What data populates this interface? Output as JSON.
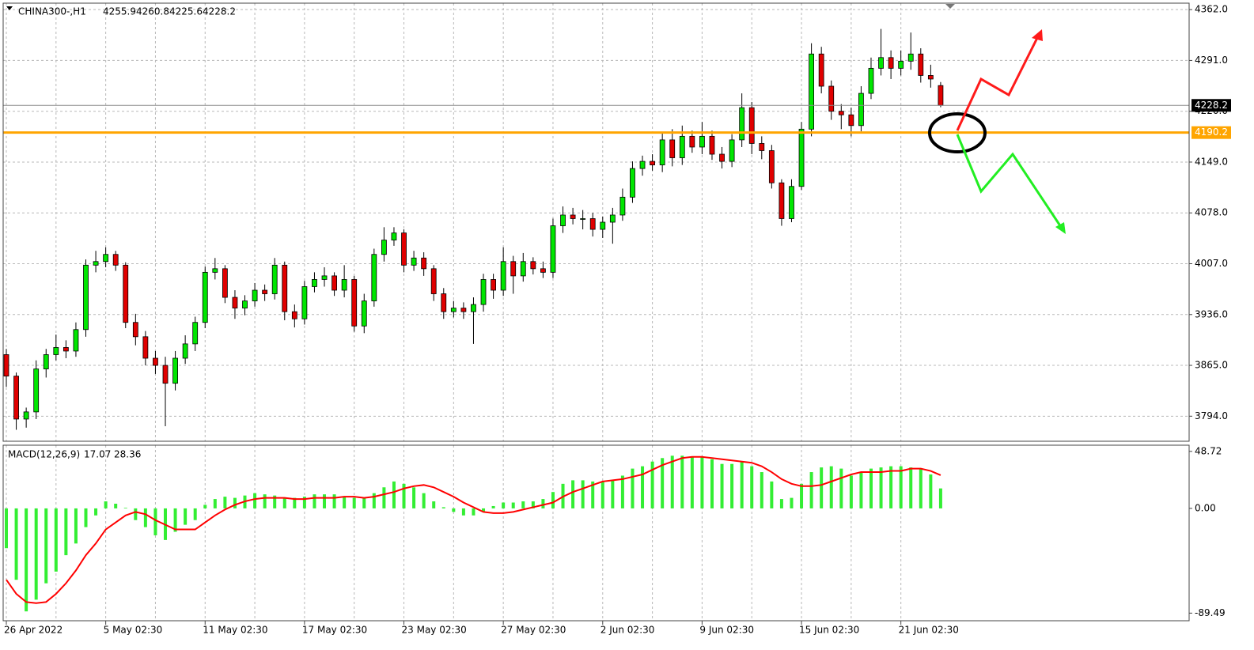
{
  "chart_data": [
    {
      "type": "candlestick",
      "title": "CHINA300-,H1",
      "xlim": [
        0,
        119
      ],
      "xticks": [
        {
          "value": 0,
          "label": "26 Apr 2022"
        },
        {
          "value": 10,
          "label": "5 May 02:30"
        },
        {
          "value": 20,
          "label": "11 May 02:30"
        },
        {
          "value": 30,
          "label": "17 May 02:30"
        },
        {
          "value": 40,
          "label": "23 May 02:30"
        },
        {
          "value": 50,
          "label": "27 May 02:30"
        },
        {
          "value": 60,
          "label": "2 Jun 02:30"
        },
        {
          "value": 70,
          "label": "9 Jun 02:30"
        },
        {
          "value": 80,
          "label": "15 Jun 02:30"
        },
        {
          "value": 90,
          "label": "21 Jun 02:30"
        }
      ],
      "ylim": [
        3759,
        4371
      ],
      "yticks": [
        {
          "value": 3794,
          "label": "3794.0"
        },
        {
          "value": 3865,
          "label": "3865.0"
        },
        {
          "value": 3936,
          "label": "3936.0"
        },
        {
          "value": 4007,
          "label": "4007.0"
        },
        {
          "value": 4078,
          "label": "4078.0"
        },
        {
          "value": 4149,
          "label": "4149.0"
        },
        {
          "value": 4220,
          "label": "4220.0"
        },
        {
          "value": 4291,
          "label": "4291.0"
        },
        {
          "value": 4362,
          "label": "4362.0"
        }
      ],
      "grid": true,
      "up_color": "#00e600",
      "down_color": "#e00000",
      "open": [
        3880,
        3850,
        3790,
        3800,
        3860,
        3880,
        3890,
        3885,
        3915,
        4005,
        4010,
        4020,
        4005,
        3925,
        3905,
        3875,
        3865,
        3840,
        3875,
        3895,
        3925,
        3995,
        4000,
        3960,
        3945,
        3955,
        3970,
        3965,
        4005,
        3940,
        3930,
        3975,
        3985,
        3990,
        3970,
        3985,
        3920,
        3955,
        4020,
        4040,
        4050,
        4005,
        4015,
        4000,
        3965,
        3940,
        3945,
        3940,
        3950,
        3985,
        3970,
        4010,
        3990,
        4010,
        4000,
        3995,
        4060,
        4075,
        4070,
        4070,
        4055,
        4065,
        4075,
        4100,
        4140,
        4150,
        4145,
        4180,
        4155,
        4185,
        4170,
        4185,
        4160,
        4150,
        4180,
        4225,
        4175,
        4165,
        4120,
        4070,
        4115,
        4195,
        4300,
        4255,
        4220,
        4215,
        4200,
        4245,
        4280,
        4295,
        4280,
        4290,
        4300,
        4270,
        4255.9
      ],
      "high": [
        3888,
        3855,
        3806,
        3872,
        3888,
        3908,
        3900,
        3925,
        4013,
        4025,
        4030,
        4025,
        4009,
        3937,
        3913,
        3885,
        3877,
        3885,
        3907,
        3933,
        4003,
        4015,
        4005,
        3970,
        3963,
        3980,
        3978,
        4015,
        4010,
        3950,
        3983,
        3995,
        4002,
        3995,
        4005,
        3990,
        3965,
        4028,
        4058,
        4058,
        4055,
        4025,
        4023,
        4005,
        3973,
        3955,
        3953,
        3960,
        3993,
        3993,
        4030,
        4018,
        4022,
        4016,
        4010,
        4070,
        4087,
        4085,
        4082,
        4078,
        4073,
        4085,
        4112,
        4150,
        4158,
        4160,
        4190,
        4195,
        4200,
        4193,
        4205,
        4193,
        4170,
        4188,
        4245,
        4233,
        4185,
        4173,
        4125,
        4125,
        4205,
        4315,
        4310,
        4263,
        4230,
        4225,
        4255,
        4295,
        4335,
        4305,
        4305,
        4330,
        4308,
        4285,
        4260.8
      ],
      "low": [
        3835,
        3775,
        3778,
        3790,
        3848,
        3872,
        3875,
        3877,
        3905,
        3995,
        4002,
        3997,
        3917,
        3893,
        3865,
        3853,
        3780,
        3830,
        3867,
        3885,
        3917,
        3985,
        3952,
        3930,
        3935,
        3947,
        3955,
        3957,
        3928,
        3918,
        3922,
        3967,
        3975,
        3962,
        3960,
        3912,
        3910,
        3947,
        4010,
        4032,
        3995,
        3997,
        3990,
        3955,
        3930,
        3932,
        3930,
        3895,
        3940,
        3958,
        3962,
        3965,
        3982,
        3992,
        3987,
        3987,
        4050,
        4062,
        4055,
        4045,
        4043,
        4035,
        4067,
        4092,
        4130,
        4137,
        4135,
        4143,
        4145,
        4162,
        4160,
        4152,
        4140,
        4142,
        4170,
        4160,
        4153,
        4112,
        4060,
        4065,
        4110,
        4185,
        4245,
        4208,
        4195,
        4185,
        4192,
        4237,
        4270,
        4265,
        4270,
        4278,
        4260,
        4253,
        4225.6
      ],
      "close": [
        3850,
        3790,
        3800,
        3860,
        3880,
        3890,
        3885,
        3915,
        4005,
        4010,
        4020,
        4005,
        3925,
        3905,
        3875,
        3865,
        3840,
        3875,
        3895,
        3925,
        3995,
        4000,
        3960,
        3945,
        3955,
        3970,
        3965,
        4005,
        3940,
        3930,
        3975,
        3985,
        3990,
        3970,
        3985,
        3920,
        3955,
        4020,
        4040,
        4050,
        4005,
        4015,
        4000,
        3965,
        3940,
        3945,
        3940,
        3950,
        3985,
        3970,
        4010,
        3990,
        4010,
        4000,
        3995,
        4060,
        4075,
        4070,
        4070,
        4055,
        4065,
        4075,
        4100,
        4140,
        4150,
        4145,
        4180,
        4155,
        4185,
        4170,
        4185,
        4160,
        4150,
        4180,
        4225,
        4175,
        4165,
        4120,
        4070,
        4115,
        4195,
        4300,
        4255,
        4220,
        4215,
        4200,
        4245,
        4280,
        4295,
        4280,
        4290,
        4300,
        4270,
        4265,
        4228.2
      ],
      "horizontal_line": 4190.2,
      "horizontal_line_color": "#ffa500"
    },
    {
      "type": "macd",
      "title": "MACD(12,26,9)",
      "ylim": [
        -96,
        54
      ],
      "yticks": [
        -89.49,
        {
          "value": 0,
          "label": "0.00"
        },
        48.72
      ],
      "histogram": {
        "color": "#33ee33",
        "values": [
          -34,
          -61,
          -88,
          -78,
          -64,
          -54,
          -40,
          -30,
          -16,
          -6,
          6,
          4,
          0.5,
          -10,
          -16,
          -23,
          -27,
          -20,
          -14,
          -10,
          3,
          8,
          10,
          9,
          11,
          13,
          12,
          11,
          9,
          9,
          10,
          12,
          12,
          12,
          10,
          9,
          9,
          13,
          18,
          23,
          21,
          18,
          13,
          6,
          1,
          -3,
          -6,
          -6,
          -3,
          2,
          5,
          5,
          6,
          6,
          8,
          14,
          21,
          24,
          24,
          23,
          23,
          24,
          28,
          34,
          36,
          40,
          43,
          45,
          45,
          44,
          44,
          42,
          38,
          38,
          40,
          36,
          31,
          23,
          8,
          9,
          21,
          31,
          35,
          36,
          34,
          28,
          31,
          34,
          35,
          36,
          36,
          35,
          34,
          29,
          17.07
        ]
      },
      "signal": {
        "color": "#ff0000",
        "values": [
          -61,
          -73,
          -80,
          -81,
          -80,
          -73,
          -64,
          -53,
          -40,
          -30,
          -18,
          -12,
          -6,
          -3,
          -5,
          -10,
          -14,
          -18,
          -18,
          -18,
          -12,
          -6,
          -1,
          3,
          6,
          8,
          9,
          9,
          9,
          8,
          8,
          9,
          9,
          9,
          10,
          10,
          9,
          10,
          12,
          14,
          17,
          19,
          20,
          18,
          14,
          10,
          5,
          1,
          -3,
          -4,
          -4,
          -3,
          -1,
          1,
          3,
          5,
          10,
          14,
          17,
          20,
          23,
          24,
          25,
          27,
          29,
          33,
          37,
          40,
          43,
          44,
          44,
          43,
          42,
          41,
          40,
          39,
          36,
          31,
          25,
          21,
          19,
          19,
          20,
          23,
          26,
          29,
          31,
          31,
          31,
          32,
          32,
          34,
          34,
          32,
          28.36
        ]
      }
    }
  ]
}
